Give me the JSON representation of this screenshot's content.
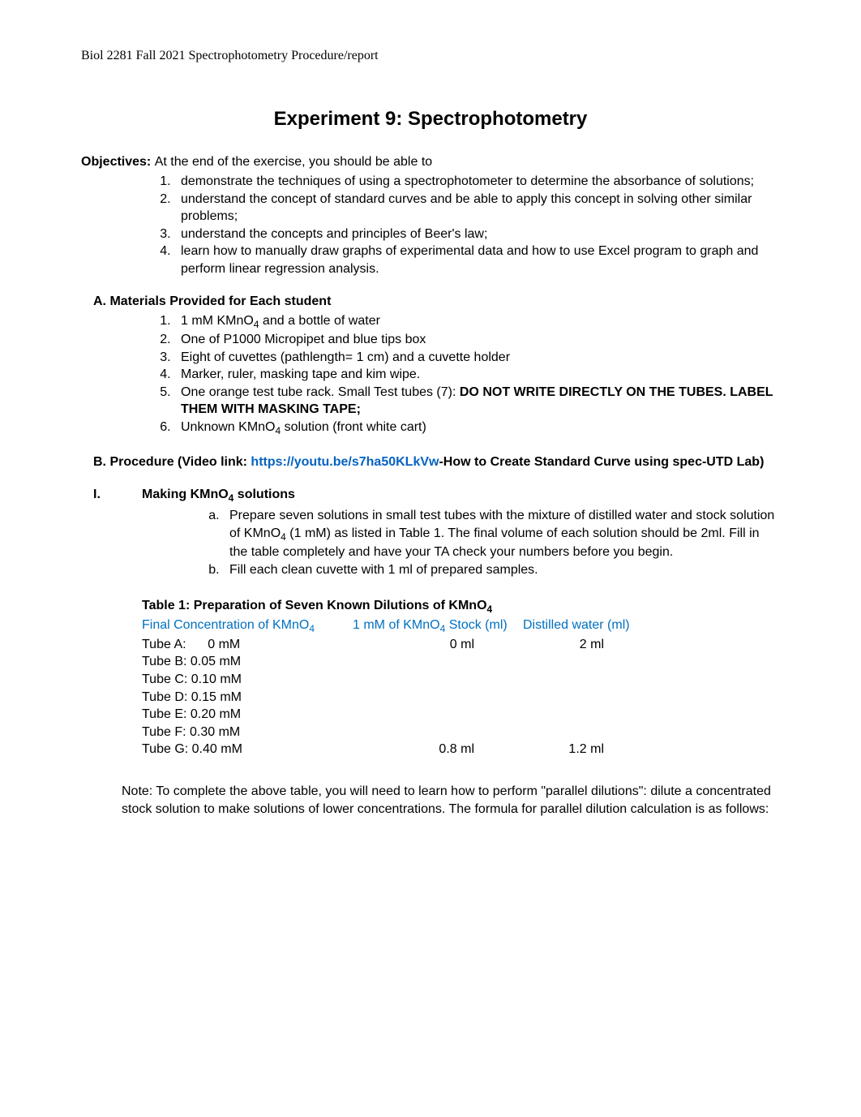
{
  "header": "Biol 2281 Fall 2021 Spectrophotometry Procedure/report",
  "title": "Experiment 9: Spectrophotometry",
  "objectives": {
    "label": "Objectives:",
    "intro": " At the end of the exercise, you should be able to",
    "items": [
      "demonstrate the techniques of using a spectrophotometer to determine the absorbance of solutions;",
      "understand the concept of standard curves and be able to apply this concept in solving other similar problems;",
      "understand the concepts and principles of Beer's law;",
      "learn how to manually draw graphs of experimental data and how to use Excel program to graph and perform linear regression analysis."
    ]
  },
  "sectionA": {
    "label": "A. Materials Provided for Each student",
    "items": {
      "i1_pre": "1  mM  KMnO",
      "i1_sub": "4",
      "i1_post": "  and a bottle of water",
      "i2": "One  of  P1000  Micropipet  and blue tips box",
      "i3": "Eight of cuvettes (pathlength= 1 cm) and a cuvette holder",
      "i4": "Marker, ruler, masking tape and kim wipe.",
      "i5_pre": "One orange test tube rack. Small Test tubes (7): ",
      "i5_bold": "DO NOT WRITE DIRECTLY ON THE TUBES. LABEL THEM WITH MASKING TAPE;",
      "i6_pre": "Unknown  KMnO",
      "i6_sub": "4",
      "i6_post": " solution (front white cart)"
    }
  },
  "sectionB": {
    "label_pre": "B. Procedure (Video link: ",
    "link_text": "https://youtu.be/s7ha50KLkVw",
    "label_post": "-How to Create Standard Curve using spec-UTD Lab)"
  },
  "sectionI": {
    "roman": "I.",
    "title_pre": "Making KMnO",
    "title_sub": "4",
    "title_post": " solutions",
    "items": {
      "a_pre": "Prepare seven solutions in small test tubes with the mixture of distilled water and stock solution of KMnO",
      "a_sub": "4",
      "a_post": " (1 mM) as listed in Table 1.  The final volume of each solution should be 2ml. Fill in the table completely and have your TA check your numbers before you begin.",
      "b": "Fill each clean cuvette with 1 ml of prepared samples."
    }
  },
  "table1": {
    "title_pre": "Table 1: Preparation of Seven Known Dilutions of KMnO",
    "title_sub": "4",
    "headers": {
      "col1_pre": "Final Concentration of KMnO",
      "col1_sub": "4",
      "col2_pre": "1 mM of KMnO",
      "col2_sub": "4",
      "col2_post": " Stock (ml)",
      "col3": "Distilled water (ml)"
    },
    "header_color": "#0070c0",
    "rows": [
      {
        "label": "Tube A:      0 mM",
        "stock": "0 ml",
        "water": "2 ml"
      },
      {
        "label": "Tube B:  0.05 mM",
        "stock": "",
        "water": ""
      },
      {
        "label": "Tube C:  0.10 mM",
        "stock": "",
        "water": ""
      },
      {
        "label": "Tube D:  0.15 mM",
        "stock": "",
        "water": ""
      },
      {
        "label": "Tube E:  0.20 mM",
        "stock": "",
        "water": ""
      },
      {
        "label": "Tube F:  0.30 mM",
        "stock": "",
        "water": ""
      },
      {
        "label": "Tube G: 0.40 mM",
        "stock": "0.8 ml",
        "water": "1.2 ml"
      }
    ]
  },
  "note": "Note: To complete the above table, you will need to learn how to perform \"parallel dilutions\": dilute a concentrated stock solution to make solutions of lower concentrations.   The formula for parallel dilution calculation is as follows:",
  "colors": {
    "link": "#0563c1",
    "table_header": "#0070c0",
    "text": "#000000",
    "background": "#ffffff"
  },
  "fonts": {
    "body": "Arial",
    "header": "Times New Roman",
    "title_size_pt": 18,
    "body_size_pt": 12
  }
}
